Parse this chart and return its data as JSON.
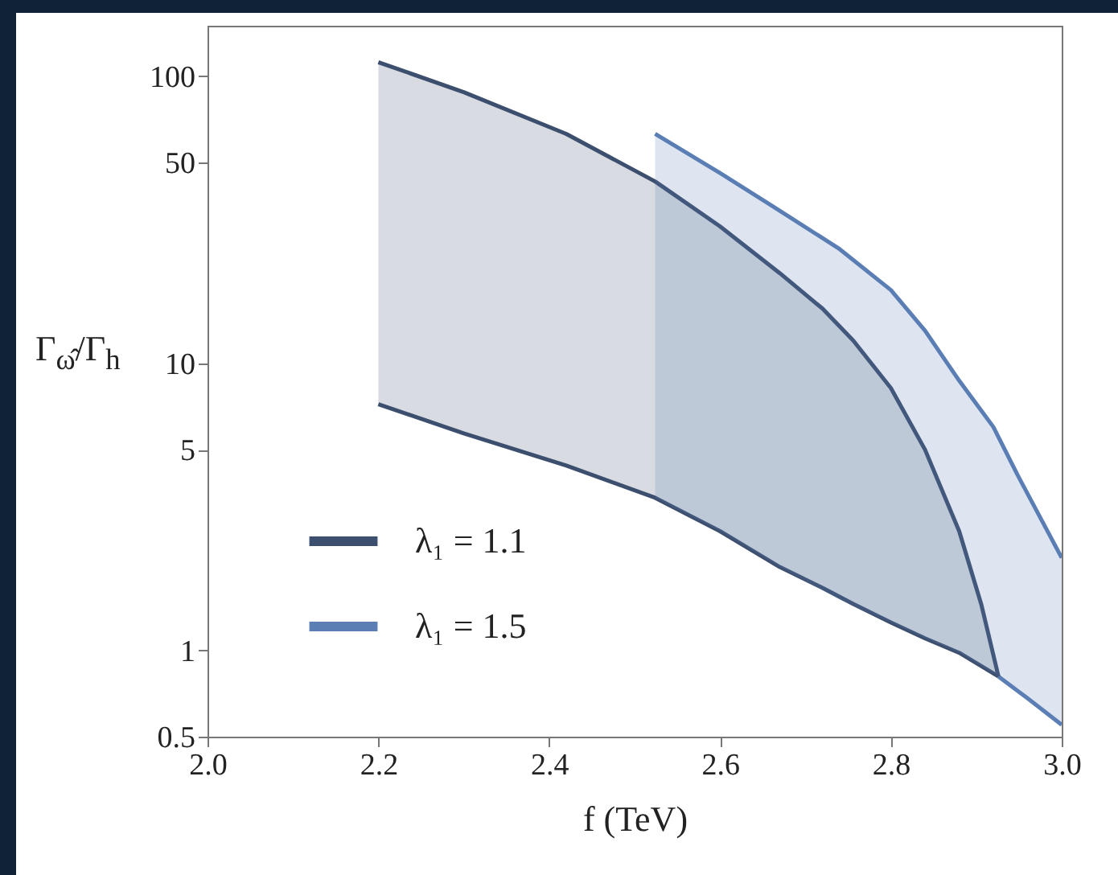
{
  "chart_data": {
    "type": "line",
    "xlabel": "f (TeV)",
    "ylabel": "Γ$_{ω̂}$/Γ$_{h}$",
    "log": "y",
    "xlim": [
      2.0,
      3.0
    ],
    "xticks": [
      {
        "value": 2.0,
        "label": "2.0"
      },
      2.2,
      2.4,
      2.6,
      2.8,
      {
        "value": 3.0,
        "label": "3.0"
      }
    ],
    "ylim": [
      0.5,
      150
    ],
    "yticks": [
      0.5,
      1,
      5,
      10,
      50,
      100
    ],
    "grid": false,
    "legend": "bottom left",
    "line_style": "solid",
    "series": [
      {
        "name": "λ₁ = 1.1",
        "color": "#3d4f6e",
        "x": [
          2.2,
          2.3,
          2.42,
          2.524,
          2.6,
          2.67,
          2.72,
          2.756,
          2.8,
          2.84,
          2.88,
          2.906,
          2.926
        ],
        "values": [
          112,
          88,
          63,
          43,
          30,
          20.6,
          15.5,
          12,
          8.2,
          5,
          2.6,
          1.44,
          0.81
        ],
        "upper": [
          112,
          88,
          63,
          43,
          30,
          20.6,
          15.5,
          12,
          8.2,
          5,
          2.6,
          1.44,
          0.81
        ],
        "lower": [
          7.2,
          5.7,
          4.4,
          3.4,
          2.6,
          1.95,
          1.65,
          1.45,
          1.25,
          1.1,
          0.98,
          0.88,
          0.81
        ]
      },
      {
        "color": "#3d4f6e",
        "x": [
          2.2,
          2.3,
          2.42,
          2.524,
          2.6,
          2.67,
          2.72,
          2.756,
          2.8,
          2.84,
          2.88,
          2.926
        ],
        "values": [
          7.2,
          5.7,
          4.4,
          3.4,
          2.6,
          1.95,
          1.65,
          1.45,
          1.25,
          1.1,
          0.98,
          0.81
        ]
      },
      {
        "name": "λ₁ = 1.5",
        "color": "#5b7fb5",
        "x": [
          2.524,
          2.6,
          2.67,
          2.74,
          2.8,
          2.84,
          2.88,
          2.92,
          2.948,
          3.0
        ],
        "values": [
          63,
          46,
          34,
          25,
          18,
          13,
          8.7,
          6,
          4.1,
          2.1
        ],
        "upper": [
          63,
          46,
          34,
          25,
          18,
          13,
          8.7,
          6,
          4.1,
          2.1
        ],
        "lower": [
          3.4,
          2.6,
          1.95,
          1.5,
          1.25,
          1.1,
          0.98,
          0.83,
          0.74,
          0.55
        ]
      },
      {
        "color": "#5b7fb5",
        "x": [
          2.926,
          2.96,
          3.0
        ],
        "values": [
          0.81,
          0.68,
          0.55
        ]
      }
    ]
  }
}
